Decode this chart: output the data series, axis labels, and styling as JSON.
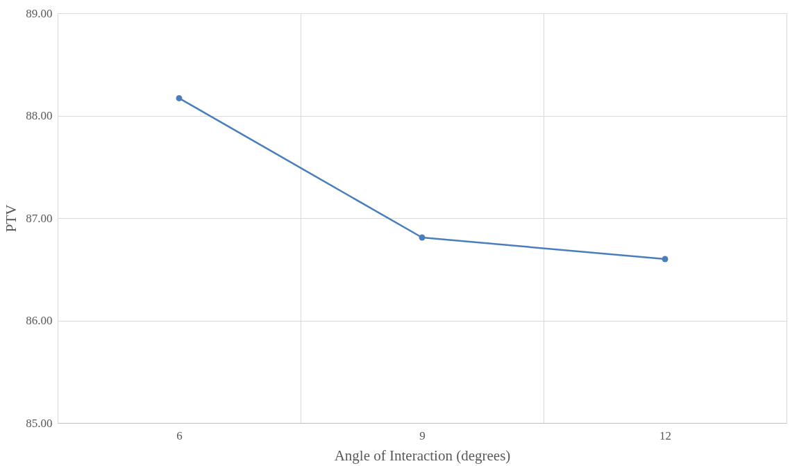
{
  "chart_data": {
    "type": "line",
    "xlabel": "Angle of Interaction (degrees)",
    "ylabel": "PTV",
    "categories": [
      "6",
      "9",
      "12"
    ],
    "series": [
      {
        "color": "#4a7ebb",
        "values": [
          88.17,
          86.81,
          86.6
        ]
      }
    ],
    "ylim": [
      85,
      89
    ],
    "yticks": [
      {
        "value": 85,
        "label": "85.00"
      },
      {
        "value": 86,
        "label": "86.00"
      },
      {
        "value": 87,
        "label": "87.00"
      },
      {
        "value": 88,
        "label": "88.00"
      },
      {
        "value": 89,
        "label": "89.00"
      }
    ],
    "grid": true,
    "marker": "circle",
    "line_style": "solid",
    "legend": false
  }
}
